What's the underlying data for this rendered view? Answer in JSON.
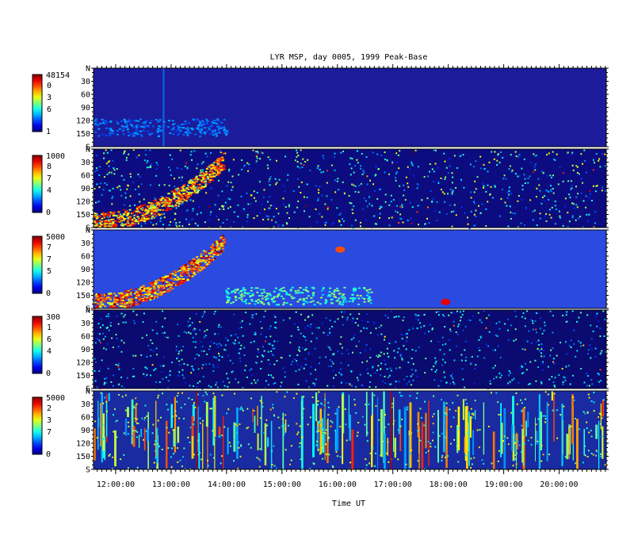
{
  "chart_data": {
    "type": "heatmap",
    "title": "LYR MSP, day 0005, 1999 Peak-Base",
    "xlabel": "Time UT",
    "x_ticks": [
      "12:00:00",
      "13:00:00",
      "14:00:00",
      "15:00:00",
      "16:00:00",
      "17:00:00",
      "18:00:00",
      "19:00:00",
      "20:00:00"
    ],
    "x_range_hours": [
      11.6,
      20.85
    ],
    "y_ticks_panel": [
      "N",
      "30",
      "60",
      "90",
      "120",
      "150",
      "S"
    ],
    "panels": [
      {
        "colorbar_max": "48154",
        "colorbar_mid": [
          "0",
          "3",
          "6"
        ],
        "colorbar_min": "1",
        "background": "#1c1c9a",
        "features": [
          {
            "kind": "band",
            "t_start": 11.6,
            "t_end": 14.0,
            "angle": 135,
            "level": 0.3
          },
          {
            "kind": "streak",
            "t": 12.85,
            "level": 0.25
          }
        ]
      },
      {
        "colorbar_max": "1000",
        "colorbar_mid": [
          "8",
          "7",
          "4"
        ],
        "colorbar_min": "0",
        "background": "#0c0c80",
        "features": [
          {
            "kind": "aurora",
            "t_start": 11.6,
            "t_end": 13.95,
            "level": 0.95
          },
          {
            "kind": "noise",
            "level": 0.5
          }
        ]
      },
      {
        "colorbar_max": "5000",
        "colorbar_mid": [
          "7",
          "7",
          "5"
        ],
        "colorbar_min": "0",
        "background": "#2a4ae0",
        "features": [
          {
            "kind": "aurora",
            "t_start": 11.6,
            "t_end": 13.95,
            "level": 1.0
          },
          {
            "kind": "band",
            "t_start": 13.95,
            "t_end": 16.6,
            "angle": 150,
            "level": 0.55
          },
          {
            "kind": "spot",
            "t": 16.05,
            "angle": 45,
            "level": 0.8
          },
          {
            "kind": "spot",
            "t": 17.95,
            "angle": 165,
            "level": 0.9
          }
        ]
      },
      {
        "colorbar_max": "300",
        "colorbar_mid": [
          "1",
          "6",
          "4"
        ],
        "colorbar_min": "0",
        "background": "#0a0a70",
        "features": [
          {
            "kind": "noise",
            "level": 0.35
          }
        ]
      },
      {
        "colorbar_max": "5000",
        "colorbar_mid": [
          "2",
          "3",
          "7"
        ],
        "colorbar_min": "0",
        "background": "#1a2aa0",
        "features": [
          {
            "kind": "stripes",
            "level": 0.6
          },
          {
            "kind": "streak",
            "t": 13.45,
            "level": 0.95
          },
          {
            "kind": "streak",
            "t": 16.95,
            "level": 0.95
          }
        ]
      }
    ],
    "ylim": [
      0,
      180
    ]
  }
}
